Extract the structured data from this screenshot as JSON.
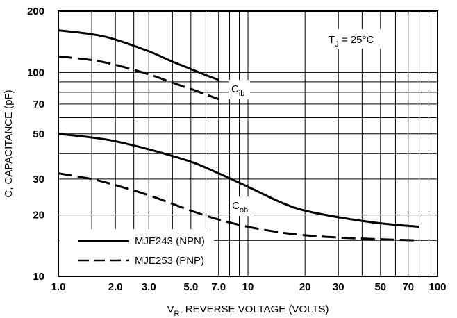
{
  "chart_data": {
    "type": "line",
    "x_scale": "log",
    "y_scale": "log",
    "xlim": [
      1,
      100
    ],
    "ylim": [
      10,
      200
    ],
    "xlabel": {
      "main": "V",
      "sub": "R",
      "rest": ", REVERSE VOLTAGE (VOLTS)"
    },
    "ylabel": "C, CAPACITANCE (pF)",
    "x_ticks": [
      {
        "value": 1,
        "label": "1.0"
      },
      {
        "value": 2,
        "label": "2.0"
      },
      {
        "value": 3,
        "label": "3.0"
      },
      {
        "value": 5,
        "label": "5.0"
      },
      {
        "value": 7,
        "label": "7.0"
      },
      {
        "value": 10,
        "label": "10"
      },
      {
        "value": 20,
        "label": "20"
      },
      {
        "value": 30,
        "label": "30"
      },
      {
        "value": 50,
        "label": "50"
      },
      {
        "value": 70,
        "label": "70"
      },
      {
        "value": 100,
        "label": "100"
      }
    ],
    "y_ticks": [
      {
        "value": 10,
        "label": "10"
      },
      {
        "value": 20,
        "label": "20"
      },
      {
        "value": 30,
        "label": "30"
      },
      {
        "value": 50,
        "label": "50"
      },
      {
        "value": 70,
        "label": "70"
      },
      {
        "value": 100,
        "label": "100"
      },
      {
        "value": 200,
        "label": "200"
      }
    ],
    "x_grid": [
      1,
      1.5,
      2,
      2.5,
      3,
      4,
      5,
      6,
      7,
      8,
      9,
      10,
      20,
      30,
      40,
      50,
      60,
      70,
      80,
      90,
      100
    ],
    "y_grid": [
      10,
      15,
      20,
      30,
      40,
      50,
      60,
      70,
      80,
      90,
      100,
      200
    ],
    "grid": true,
    "annotations": {
      "temperature": {
        "main": "T",
        "sub": "J",
        "rest": " = 25°C"
      },
      "cib": {
        "main": "C",
        "sub": "ib"
      },
      "cob": {
        "main": "C",
        "sub": "ob"
      }
    },
    "legend": {
      "placement": "bottom-left",
      "entries": [
        {
          "label": "MJE243 (NPN)",
          "style": "solid"
        },
        {
          "label": "MJE253 (PNP)",
          "style": "dashed"
        }
      ]
    },
    "series": [
      {
        "name": "MJE243 (NPN)",
        "parameter": "C_ib",
        "style": "solid",
        "x": [
          1,
          1.5,
          2,
          3,
          4,
          5,
          6,
          7
        ],
        "y": [
          161,
          154,
          145,
          127,
          113,
          104,
          97,
          92
        ]
      },
      {
        "name": "MJE253 (PNP)",
        "parameter": "C_ib",
        "style": "dashed",
        "x": [
          1,
          1.5,
          2,
          3,
          4,
          5,
          6,
          7
        ],
        "y": [
          120,
          115,
          109,
          98,
          89,
          83,
          78,
          74
        ]
      },
      {
        "name": "MJE243 (NPN)",
        "parameter": "C_ob",
        "style": "solid",
        "x": [
          1,
          1.5,
          2,
          3,
          5,
          7,
          10,
          15,
          20,
          30,
          50,
          80
        ],
        "y": [
          50,
          48,
          46,
          42,
          36.5,
          32,
          27.5,
          23,
          21,
          19.5,
          18.2,
          17.5
        ]
      },
      {
        "name": "MJE253 (PNP)",
        "parameter": "C_ob",
        "style": "dashed",
        "x": [
          1,
          1.5,
          2,
          3,
          5,
          7,
          10,
          15,
          20,
          30,
          50,
          80
        ],
        "y": [
          32,
          30,
          28,
          25,
          21,
          19,
          17.5,
          16.4,
          15.9,
          15.5,
          15.2,
          15
        ]
      }
    ]
  }
}
